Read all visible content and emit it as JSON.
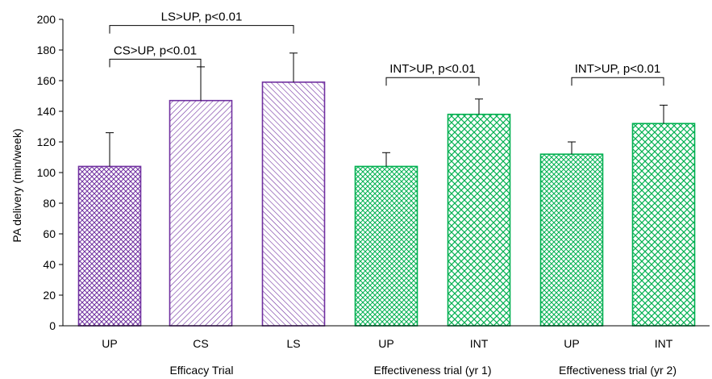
{
  "chart_data": {
    "type": "bar",
    "ylabel": "PA delivery (min/week)",
    "ylim": [
      0,
      200
    ],
    "yticks": [
      0,
      20,
      40,
      60,
      80,
      100,
      120,
      140,
      160,
      180,
      200
    ],
    "grid": false,
    "colors": {
      "efficacy": "#7030A0",
      "effectiveness": "#00B050"
    },
    "bars": [
      {
        "label": "UP",
        "group": "Efficacy Trial",
        "value": 104,
        "error": 22,
        "color": "#7030A0",
        "pattern": "dots"
      },
      {
        "label": "CS",
        "group": "Efficacy Trial",
        "value": 147,
        "error": 22,
        "color": "#7030A0",
        "pattern": "diag-back"
      },
      {
        "label": "LS",
        "group": "Efficacy Trial",
        "value": 159,
        "error": 19,
        "color": "#7030A0",
        "pattern": "diag-fwd"
      },
      {
        "label": "UP",
        "group": "Effectiveness trial (yr 1)",
        "value": 104,
        "error": 9,
        "color": "#00B050",
        "pattern": "dots"
      },
      {
        "label": "INT",
        "group": "Effectiveness trial (yr 1)",
        "value": 138,
        "error": 10,
        "color": "#00B050",
        "pattern": "cross"
      },
      {
        "label": "UP",
        "group": "Effectiveness trial (yr 2)",
        "value": 112,
        "error": 8,
        "color": "#00B050",
        "pattern": "dots"
      },
      {
        "label": "INT",
        "group": "Effectiveness trial (yr 2)",
        "value": 132,
        "error": 12,
        "color": "#00B050",
        "pattern": "cross"
      }
    ],
    "groups": [
      {
        "name": "Efficacy Trial",
        "bars": [
          0,
          1,
          2
        ]
      },
      {
        "name": "Effectiveness trial (yr 1)",
        "bars": [
          3,
          4
        ]
      },
      {
        "name": "Effectiveness trial (yr 2)",
        "bars": [
          5,
          6
        ]
      }
    ],
    "annotations": [
      {
        "text": "LS>UP, p<0.01",
        "from": 0,
        "to": 2,
        "y": 196
      },
      {
        "text": "CS>UP, p<0.01",
        "from": 0,
        "to": 1,
        "y": 174
      },
      {
        "text": "INT>UP, p<0.01",
        "from": 3,
        "to": 4,
        "y": 162
      },
      {
        "text": "INT>UP, p<0.01",
        "from": 5,
        "to": 6,
        "y": 162
      }
    ]
  }
}
